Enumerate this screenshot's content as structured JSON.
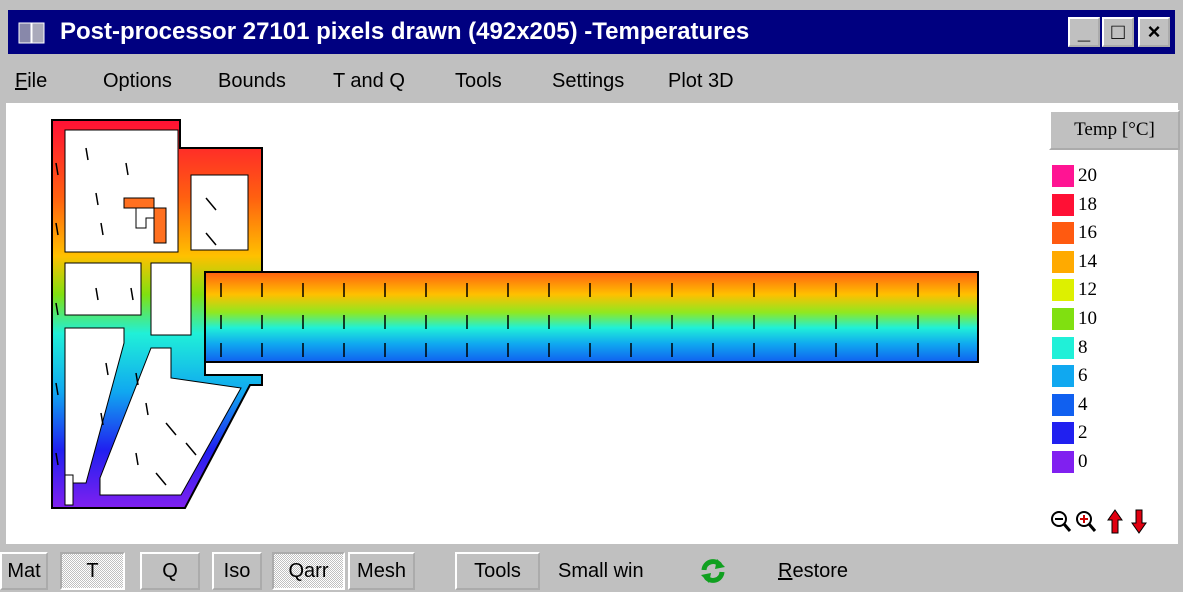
{
  "window": {
    "title": "Post-processor 27101 pixels drawn (492x205) -Temperatures"
  },
  "menu": [
    "File",
    "Options",
    "Bounds",
    "T and Q",
    "Tools",
    "Settings",
    "Plot 3D"
  ],
  "legend": {
    "title": "Temp [°C]",
    "items": [
      {
        "label": "20",
        "color": "#ff1493"
      },
      {
        "label": "18",
        "color": "#ff1035"
      },
      {
        "label": "16",
        "color": "#ff5a10"
      },
      {
        "label": "14",
        "color": "#ffaa00"
      },
      {
        "label": "12",
        "color": "#ddf000"
      },
      {
        "label": "10",
        "color": "#80e010"
      },
      {
        "label": "8",
        "color": "#20f0d8"
      },
      {
        "label": "6",
        "color": "#10a8f0"
      },
      {
        "label": "4",
        "color": "#1060f0"
      },
      {
        "label": "2",
        "color": "#2020f0"
      },
      {
        "label": "0",
        "color": "#8020f0"
      }
    ]
  },
  "toolbar": {
    "buttons": [
      "Mat",
      "T",
      "Q",
      "Iso",
      "Qarr",
      "Mesh",
      "Tools"
    ],
    "small": "Small win",
    "restore": "Restore"
  }
}
